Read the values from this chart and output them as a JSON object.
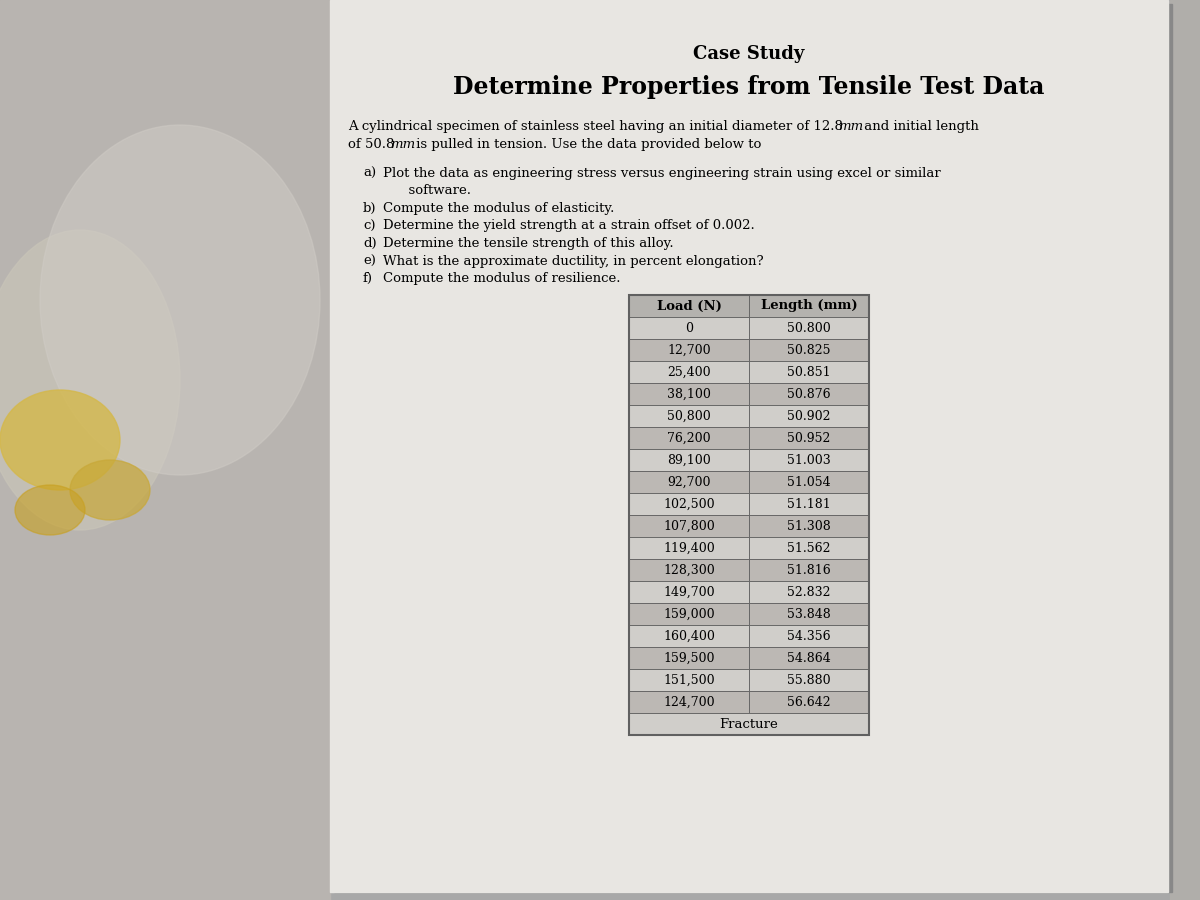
{
  "title": "Case Study",
  "subtitle": "Determine Properties from Tensile Test Data",
  "intro_line1": "A cylindrical specimen of stainless steel having an initial diameter of 12.8",
  "intro_bold1": "mm",
  "intro_line1b": " and initial length",
  "intro_line2": "of 50.8",
  "intro_bold2": "mm",
  "intro_line2b": " is pulled in tension. Use the data provided below to",
  "questions": [
    [
      "a) ",
      " Plot the data as engineering stress versus engineering strain using excel or similar"
    ],
    [
      "",
      "      software."
    ],
    [
      "b) ",
      "Compute the modulus of elasticity."
    ],
    [
      "c) ",
      "Determine the yield strength at a strain offset of 0.002."
    ],
    [
      "d) ",
      "Determine the tensile strength of this alloy."
    ],
    [
      "e) ",
      "What is the approximate ductility, in percent elongation?"
    ],
    [
      "f) ",
      "Compute the modulus of resilience."
    ]
  ],
  "col1_header": "Load (N)",
  "col2_header": "Length (mm)",
  "table_data": [
    [
      "0",
      "50.800"
    ],
    [
      "12,700",
      "50.825"
    ],
    [
      "25,400",
      "50.851"
    ],
    [
      "38,100",
      "50.876"
    ],
    [
      "50,800",
      "50.902"
    ],
    [
      "76,200",
      "50.952"
    ],
    [
      "89,100",
      "51.003"
    ],
    [
      "92,700",
      "51.054"
    ],
    [
      "102,500",
      "51.181"
    ],
    [
      "107,800",
      "51.308"
    ],
    [
      "119,400",
      "51.562"
    ],
    [
      "128,300",
      "51.816"
    ],
    [
      "149,700",
      "52.832"
    ],
    [
      "159,000",
      "53.848"
    ],
    [
      "160,400",
      "54.356"
    ],
    [
      "159,500",
      "54.864"
    ],
    [
      "151,500",
      "55.880"
    ],
    [
      "124,700",
      "56.642"
    ]
  ],
  "fracture_label": "Fracture",
  "outer_bg": "#a8a8a8",
  "left_bg": "#b8b4b0",
  "page_bg": "#e8e6e2",
  "page_shadow": "#888888",
  "table_header_bg": "#b4b2ae",
  "table_row_light": "#d0ceca",
  "table_row_dark": "#bcb8b4",
  "table_border_color": "#606060"
}
